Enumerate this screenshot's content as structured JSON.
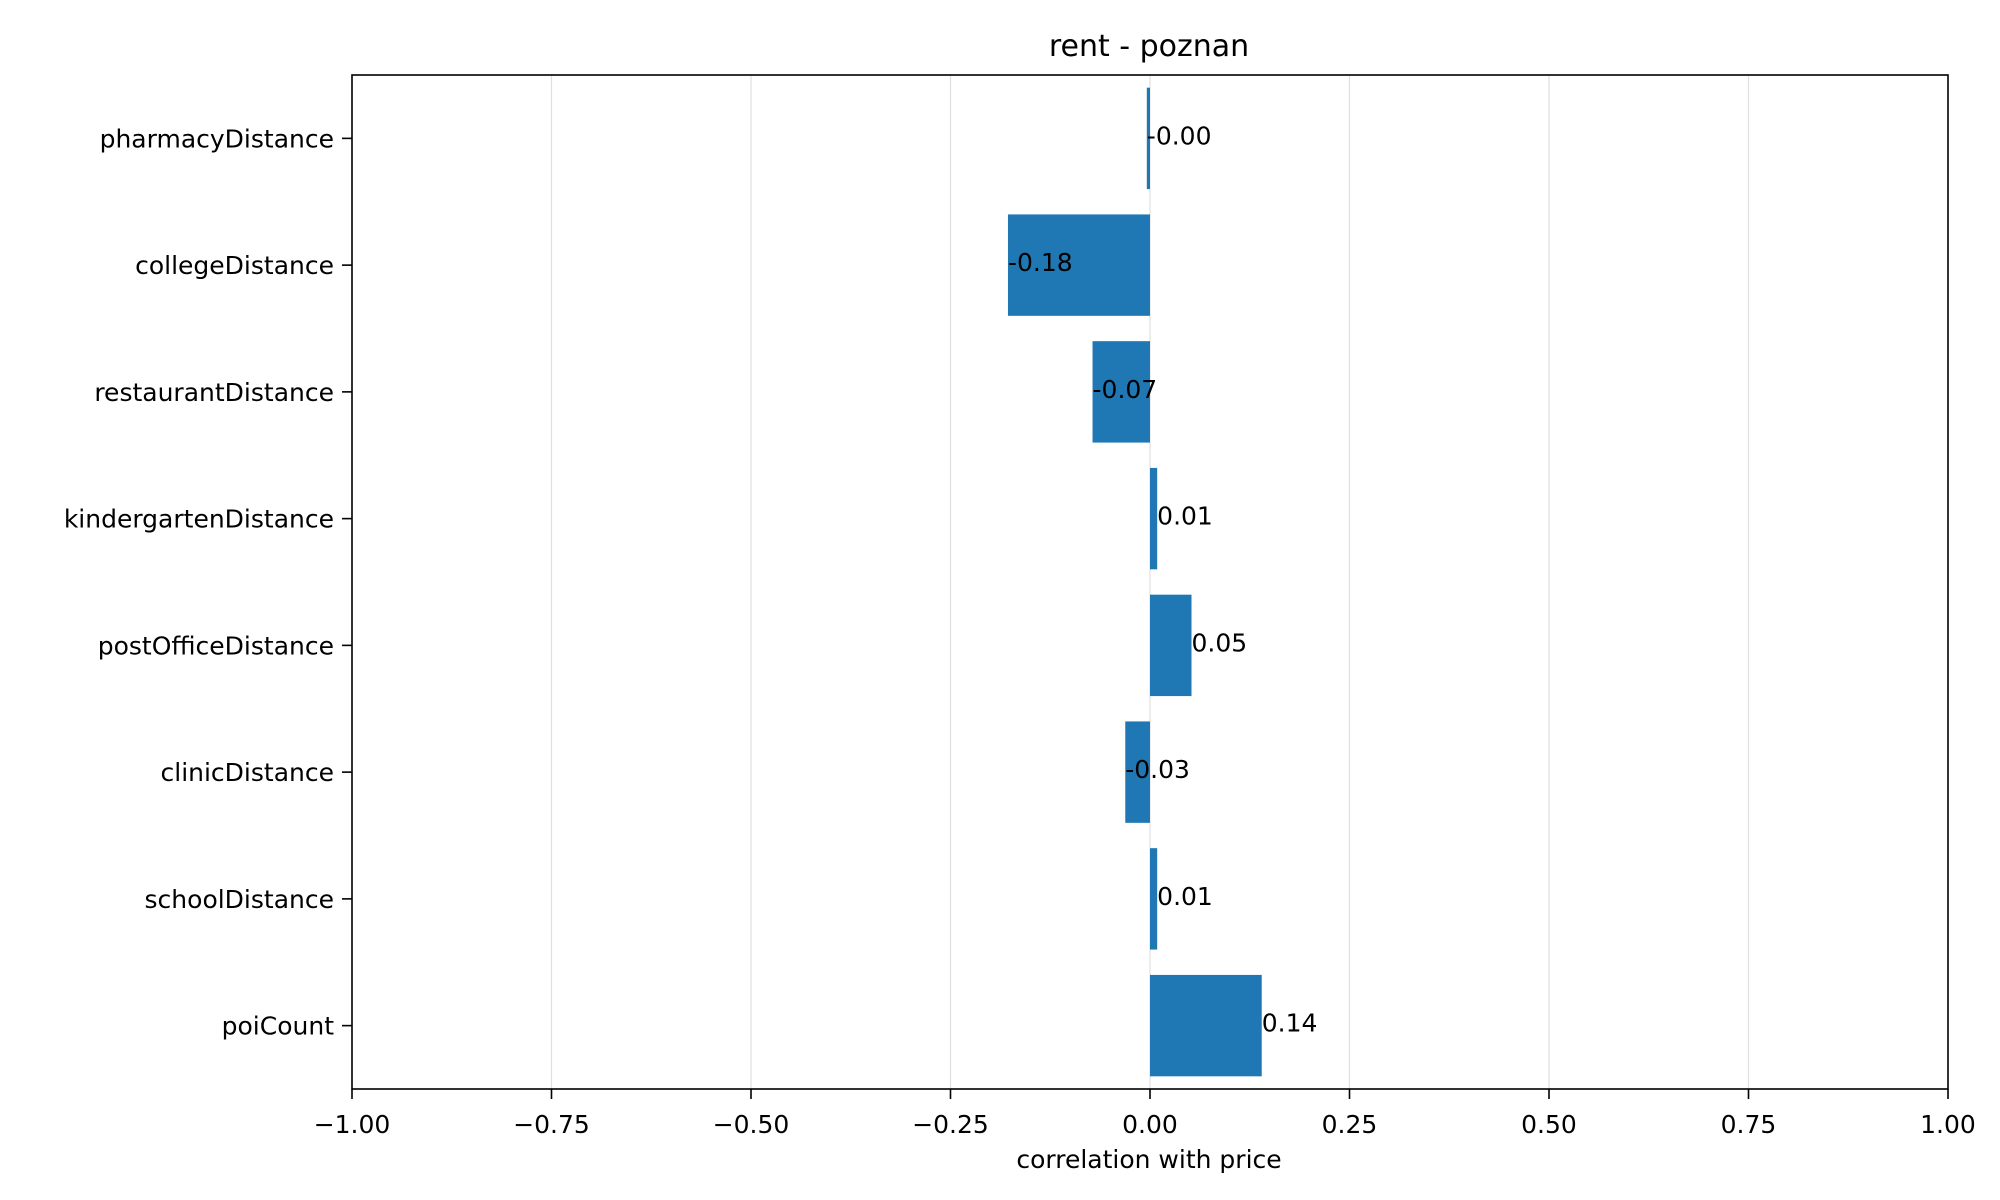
{
  "chart_data": {
    "type": "bar",
    "orientation": "horizontal",
    "title": "rent - poznan",
    "xlabel": "correlation with price",
    "ylabel": "",
    "xlim": [
      -1.0,
      1.0
    ],
    "x_ticks": [
      -1.0,
      -0.75,
      -0.5,
      -0.25,
      0.0,
      0.25,
      0.5,
      0.75,
      1.0
    ],
    "x_tick_labels": [
      "−1.00",
      "−0.75",
      "−0.50",
      "−0.25",
      "0.00",
      "0.25",
      "0.50",
      "0.75",
      "1.00"
    ],
    "categories": [
      "pharmacyDistance",
      "collegeDistance",
      "restaurantDistance",
      "kindergartenDistance",
      "postOfficeDistance",
      "clinicDistance",
      "schoolDistance",
      "poiCount"
    ],
    "values": [
      -0.004,
      -0.178,
      -0.072,
      0.009,
      0.052,
      -0.031,
      0.009,
      0.14
    ],
    "value_labels": [
      "-0.00",
      "-0.18",
      "-0.07",
      "0.01",
      "0.05",
      "-0.03",
      "0.01",
      "0.14"
    ],
    "grid": "vertical",
    "legend": "none",
    "bar_color": "#1f77b4",
    "grid_color": "#e0e0e0"
  }
}
